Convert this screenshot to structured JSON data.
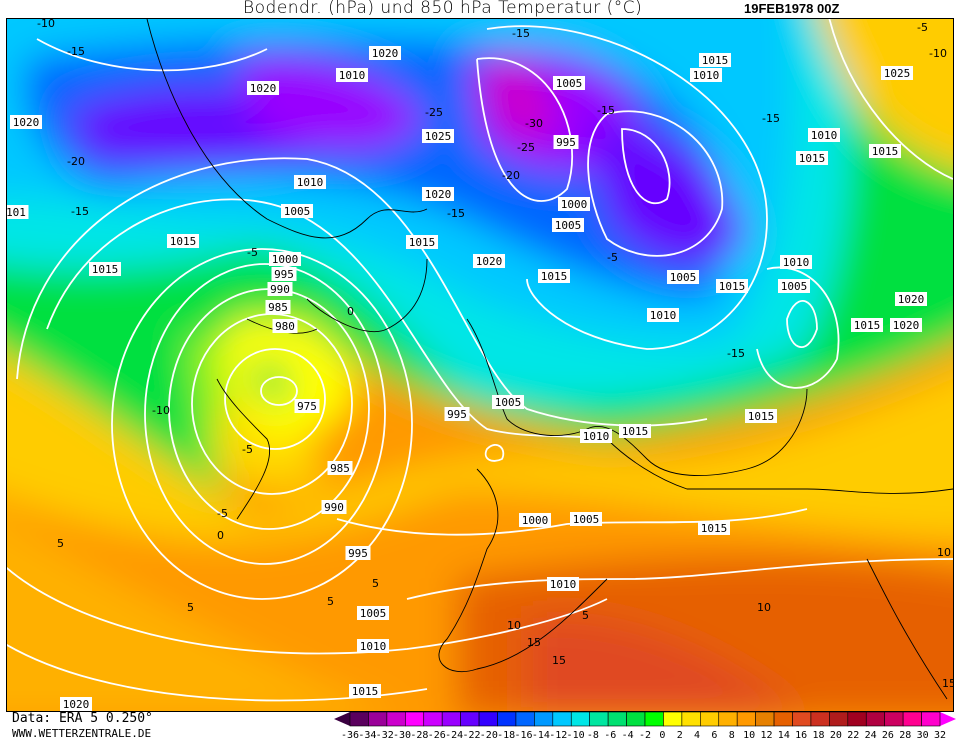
{
  "header": {
    "title": "Bodendr. (hPa) und 850 hPa Temperatur (°C)",
    "datetime": "19FEB1978 00Z"
  },
  "footer": {
    "data_source": "Data: ERA 5 0.250°",
    "website": "WWW.WETTERZENTRALE.DE"
  },
  "map": {
    "variables": [
      "surface pressure isobars (hPa)",
      "850 hPa temperature shading (°C)"
    ],
    "isobar_labels": [
      "1020",
      "1010",
      "1020",
      "1020",
      "1025",
      "1005",
      "995",
      "1015",
      "1010",
      "1025",
      "1010",
      "1015",
      "1015",
      "1010",
      "1005",
      "1020",
      "101",
      "1015",
      "1015",
      "1000",
      "1005",
      "1020",
      "1015",
      "1005",
      "1015",
      "1010",
      "1005",
      "1010",
      "1015",
      "1000",
      "995",
      "990",
      "985",
      "980",
      "975",
      "1020",
      "1015",
      "1020",
      "995",
      "1005",
      "1010",
      "1015",
      "1015",
      "985",
      "990",
      "995",
      "1000",
      "1005",
      "1015",
      "1010",
      "1005",
      "1010",
      "1015",
      "1020"
    ],
    "temperature_labels": [
      "-10",
      "-15",
      "-20",
      "-15",
      "-25",
      "-30",
      "-25",
      "-20",
      "-15",
      "-15",
      "-5",
      "-5",
      "-5",
      "-10",
      "-5",
      "0",
      "-15",
      "-10",
      "5",
      "0",
      "5",
      "5",
      "10",
      "15",
      "-15",
      "-5",
      "-15",
      "5",
      "10",
      "15",
      "15",
      "10",
      "5"
    ]
  },
  "colorbar": {
    "ticks": [
      "-36",
      "-34",
      "-32",
      "-30",
      "-28",
      "-26",
      "-24",
      "-22",
      "-20",
      "-18",
      "-16",
      "-14",
      "-12",
      "-10",
      "-8",
      "-6",
      "-4",
      "-2",
      "0",
      "2",
      "4",
      "6",
      "8",
      "10",
      "12",
      "14",
      "16",
      "18",
      "20",
      "22",
      "24",
      "26",
      "28",
      "30",
      "32"
    ],
    "colors": [
      "#5a005e",
      "#9a0099",
      "#cc00cc",
      "#ff00ff",
      "#cc00ff",
      "#9900ff",
      "#6600ff",
      "#3300ff",
      "#0033ff",
      "#0066ff",
      "#0099ff",
      "#00c8ff",
      "#00e6e6",
      "#00e6a0",
      "#00e070",
      "#00e040",
      "#00ff00",
      "#ffff00",
      "#ffe000",
      "#ffcc00",
      "#ffb000",
      "#ff9900",
      "#e68000",
      "#e66000",
      "#e04a20",
      "#cc3020",
      "#b01c1c",
      "#a00020",
      "#b00040",
      "#cc0060",
      "#ff0090",
      "#ff00cc"
    ],
    "low_arrow_color": "#3a0040",
    "high_arrow_color": "#ff00ff"
  }
}
